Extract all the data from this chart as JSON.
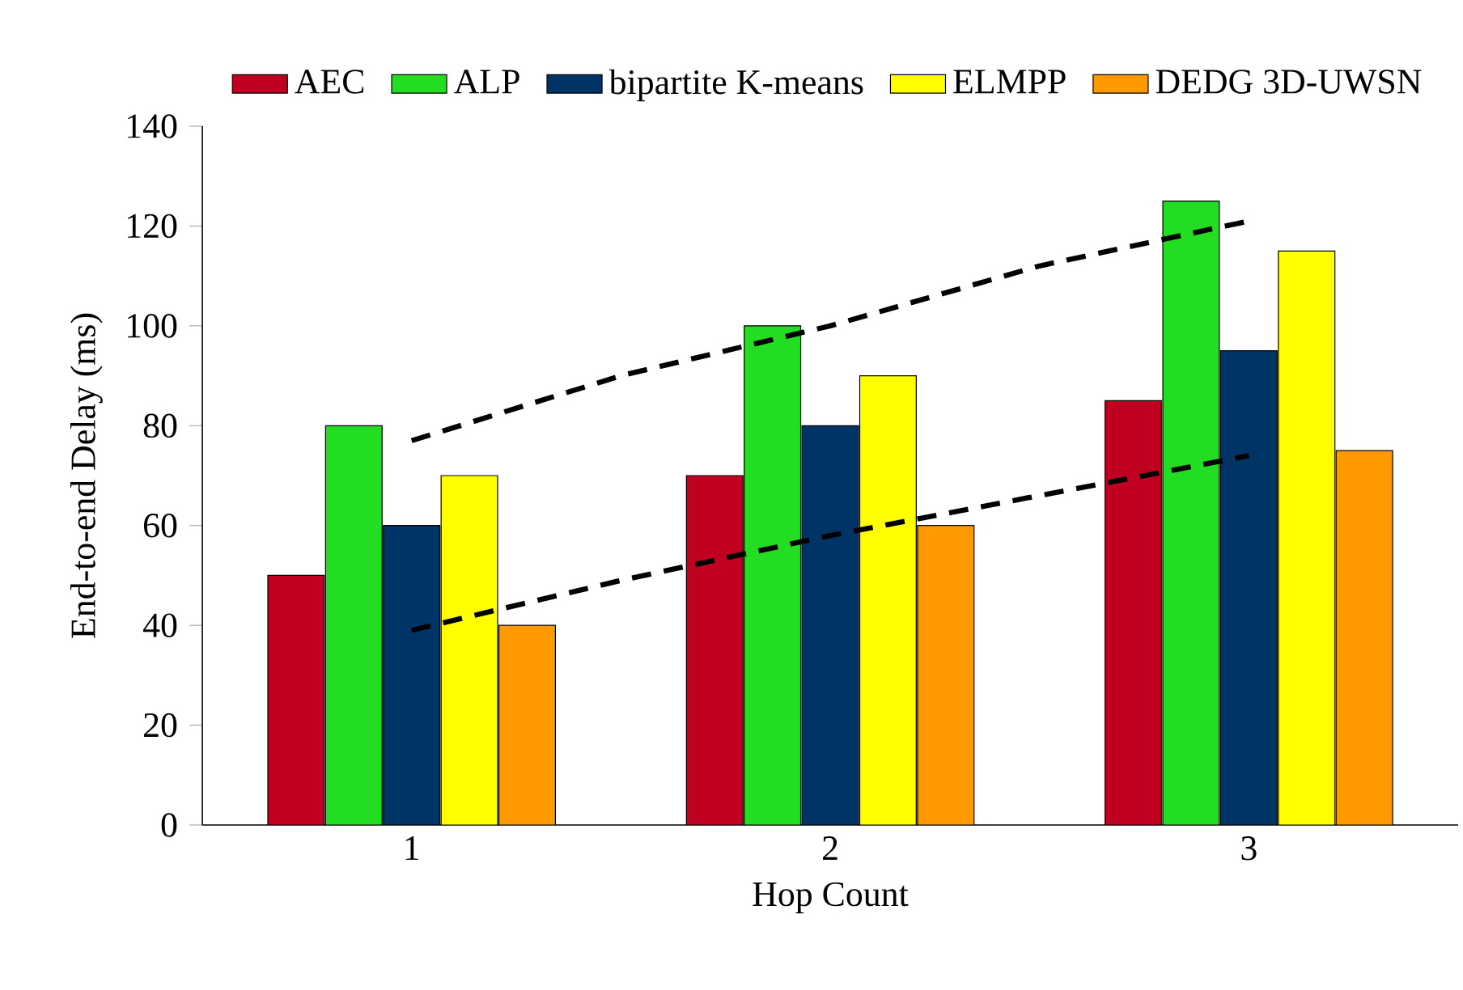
{
  "chart_data": {
    "type": "bar",
    "xlabel": "Hop Count",
    "ylabel": "End-to-end Delay (ms)",
    "x": [
      1,
      2,
      3
    ],
    "xlim": [
      0.5,
      3.5
    ],
    "xticks": [
      1,
      2,
      3
    ],
    "ylim": [
      0,
      140
    ],
    "yticks": [
      0,
      20,
      40,
      60,
      80,
      100,
      120,
      140
    ],
    "legend": "top",
    "series": [
      {
        "name": "AEC",
        "color": "#c00020",
        "values": [
          50,
          70,
          85
        ]
      },
      {
        "name": "ALP",
        "color": "#22dd22",
        "values": [
          80,
          100,
          125
        ]
      },
      {
        "name": "bipartite K-means",
        "color": "#003366",
        "values": [
          60,
          80,
          95
        ]
      },
      {
        "name": "ELMPP",
        "color": "#ffff00",
        "values": [
          70,
          90,
          115
        ]
      },
      {
        "name": "DEDG 3D-UWSN",
        "color": "#ff9900",
        "values": [
          40,
          60,
          75
        ]
      },
      {
        "type": "line",
        "color": "#000000",
        "line_style": "dashed",
        "x": [
          1,
          1.5,
          2,
          2.5,
          3
        ],
        "values": [
          77,
          90,
          100,
          112,
          121
        ]
      },
      {
        "type": "line",
        "color": "#000000",
        "line_style": "dashed",
        "x": [
          1,
          1.5,
          2,
          2.5,
          3
        ],
        "values": [
          39,
          49,
          58,
          66,
          74
        ]
      }
    ]
  }
}
